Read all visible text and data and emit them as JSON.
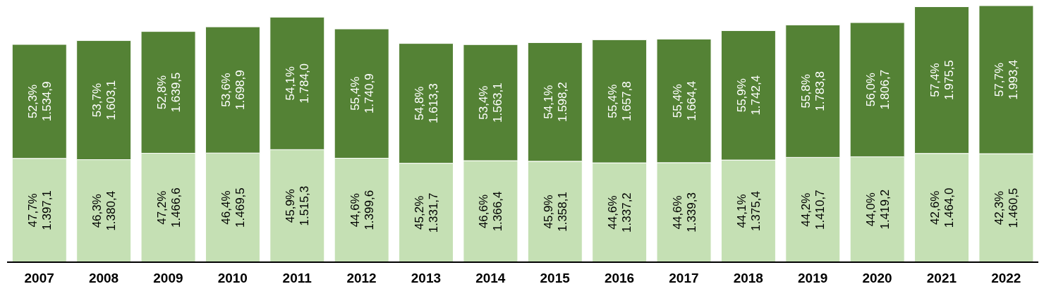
{
  "chart_data": {
    "type": "bar",
    "stacked": true,
    "legend": false,
    "grid": false,
    "data_labels": false,
    "categories": [
      "2007",
      "2008",
      "2009",
      "2010",
      "2011",
      "2012",
      "2013",
      "2014",
      "2015",
      "2016",
      "2017",
      "2018",
      "2019",
      "2020",
      "2021",
      "2022"
    ],
    "series": [
      {
        "color": "#c5e0b4",
        "values": [
          1397.1,
          1380.4,
          1466.6,
          1469.5,
          1515.3,
          1399.6,
          1331.7,
          1366.4,
          1358.1,
          1337.2,
          1339.3,
          1375.4,
          1410.7,
          1419.2,
          1464.0,
          1460.5
        ],
        "value_labels": [
          "47,7%\n1.397,1",
          "46,3%\n1.380,4",
          "47,2%\n1.466,6",
          "46,4%\n1.469,5",
          "45,9%\n1.515,3",
          "44,6%\n1.399,6",
          "45,2%\n1.331,7",
          "46,6%\n1.366,4",
          "45,9%\n1.358,1",
          "44,6%\n1.337,2",
          "44,6%\n1.339,3",
          "44,1%\n1.375,4",
          "44,2%\n1.410,7",
          "44,0%\n1.419,2",
          "42,6%\n1.464,0",
          "42,3%\n1.460,5"
        ]
      },
      {
        "color": "#548235",
        "values": [
          1534.9,
          1603.1,
          1639.5,
          1698.9,
          1784.0,
          1740.9,
          1613.3,
          1563.1,
          1598.2,
          1657.8,
          1664.4,
          1742.4,
          1783.8,
          1806.7,
          1975.5,
          1993.4
        ],
        "value_labels": [
          "52,3%\n1.534,9",
          "53,7%\n1.603,1",
          "52,8%\n1.639,5",
          "53,6%\n1.698,9",
          "54,1%\n1.784,0",
          "55,4%\n1.740,9",
          "54,8%\n1.613,3",
          "53,4%\n1.563,1",
          "54,1%\n1.598,2",
          "55,4%\n1.657,8",
          "55,4%\n1.664,4",
          "55,9%\n1.742,4",
          "55,8%\n1.783,8",
          "56,0%\n1.806,7",
          "57,4%\n1.975,5",
          "57,7%\n1.993,4"
        ]
      }
    ]
  }
}
